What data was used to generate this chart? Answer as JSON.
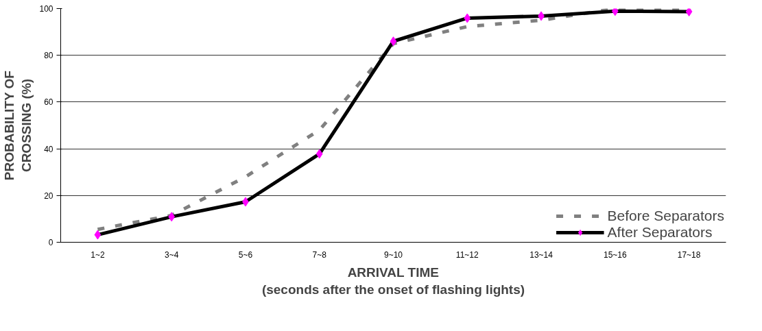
{
  "chart_data": {
    "type": "line",
    "xlabel": "ARRIVAL TIME\n(seconds after the onset of flashing lights)",
    "ylabel": "PROBABILITY OF\nCROSSING (%)",
    "categories": [
      "1~2",
      "3~4",
      "5~6",
      "7~8",
      "9~10",
      "11~12",
      "13~14",
      "15~16",
      "17~18"
    ],
    "ylim": [
      0,
      100
    ],
    "yticks": [
      0,
      20,
      40,
      60,
      80,
      100
    ],
    "grid": "y",
    "legend": "bottom right",
    "series": [
      {
        "name": "Before Separators",
        "color": "#808080",
        "line_style": "dashed",
        "marker": "none",
        "values": [
          5.5,
          11.5,
          28,
          48,
          85,
          92.3,
          95,
          100,
          100
        ]
      },
      {
        "name": "After Separators",
        "color": "#000000",
        "line_style": "solid",
        "marker": "diamond",
        "values": [
          3.2,
          10.9,
          17.3,
          37.8,
          86,
          95.9,
          96.8,
          98.9,
          98.7
        ]
      }
    ]
  }
}
